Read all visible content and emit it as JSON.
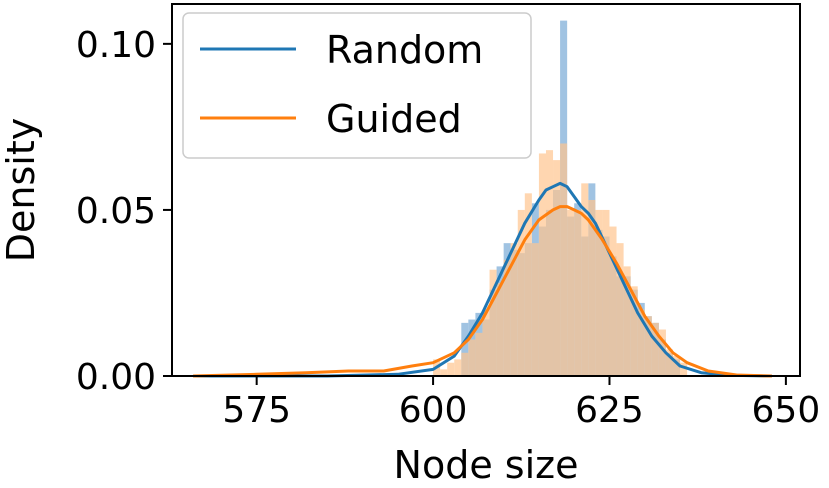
{
  "chart_data": {
    "type": "histogram-kde",
    "xlabel": "Node size",
    "ylabel": "Density",
    "xlim": [
      563,
      652
    ],
    "ylim": [
      0,
      0.112
    ],
    "x_ticks": [
      575,
      600,
      625,
      650
    ],
    "y_ticks": [
      {
        "value": 0.0,
        "label": "0.00"
      },
      {
        "value": 0.05,
        "label": "0.05"
      },
      {
        "value": 0.1,
        "label": "0.10"
      }
    ],
    "grid": false,
    "legend": {
      "position": "top-left",
      "entries": [
        "Random",
        "Guided"
      ]
    },
    "histogram_bin_width": 1,
    "series": [
      {
        "name": "Random",
        "color": "#1f77b4",
        "hist_color": "#8fb9dd",
        "hist": [
          [
            604,
            0.016
          ],
          [
            605,
            0.017
          ],
          [
            606,
            0.019
          ],
          [
            607,
            0.017
          ],
          [
            608,
            0.026
          ],
          [
            609,
            0.033
          ],
          [
            610,
            0.04
          ],
          [
            611,
            0.038
          ],
          [
            612,
            0.037
          ],
          [
            613,
            0.04
          ],
          [
            614,
            0.052
          ],
          [
            615,
            0.045
          ],
          [
            616,
            0.05
          ],
          [
            617,
            0.056
          ],
          [
            618,
            0.107
          ],
          [
            619,
            0.048
          ],
          [
            620,
            0.052
          ],
          [
            621,
            0.042
          ],
          [
            622,
            0.058
          ],
          [
            623,
            0.044
          ],
          [
            624,
            0.042
          ],
          [
            625,
            0.036
          ],
          [
            626,
            0.03
          ],
          [
            627,
            0.03
          ],
          [
            628,
            0.026
          ],
          [
            629,
            0.022
          ],
          [
            630,
            0.018
          ],
          [
            631,
            0.016
          ],
          [
            632,
            0.011
          ],
          [
            633,
            0.007
          ],
          [
            634,
            0.005
          ]
        ],
        "kde": [
          [
            566,
            0.0
          ],
          [
            585,
            0.0
          ],
          [
            595,
            0.0005
          ],
          [
            600,
            0.002
          ],
          [
            603,
            0.006
          ],
          [
            605,
            0.012
          ],
          [
            607,
            0.019
          ],
          [
            609,
            0.028
          ],
          [
            611,
            0.037
          ],
          [
            613,
            0.046
          ],
          [
            615,
            0.053
          ],
          [
            616,
            0.056
          ],
          [
            617,
            0.057
          ],
          [
            618,
            0.058
          ],
          [
            619,
            0.057
          ],
          [
            620,
            0.054
          ],
          [
            621,
            0.051
          ],
          [
            622,
            0.049
          ],
          [
            623,
            0.046
          ],
          [
            625,
            0.037
          ],
          [
            627,
            0.028
          ],
          [
            629,
            0.019
          ],
          [
            631,
            0.012
          ],
          [
            633,
            0.007
          ],
          [
            635,
            0.003
          ],
          [
            638,
            0.001
          ],
          [
            642,
            0.0002
          ],
          [
            648,
            0.0
          ]
        ]
      },
      {
        "name": "Guided",
        "color": "#ff7f0e",
        "hist_color": "#ffc48f",
        "hist": [
          [
            600,
            0.005
          ],
          [
            601,
            0.002
          ],
          [
            602,
            0.004
          ],
          [
            603,
            0.005
          ],
          [
            604,
            0.007
          ],
          [
            605,
            0.011
          ],
          [
            606,
            0.013
          ],
          [
            607,
            0.02
          ],
          [
            608,
            0.032
          ],
          [
            609,
            0.028
          ],
          [
            610,
            0.035
          ],
          [
            611,
            0.04
          ],
          [
            612,
            0.05
          ],
          [
            613,
            0.055
          ],
          [
            614,
            0.04
          ],
          [
            615,
            0.067
          ],
          [
            616,
            0.068
          ],
          [
            617,
            0.065
          ],
          [
            618,
            0.07
          ],
          [
            619,
            0.05
          ],
          [
            620,
            0.05
          ],
          [
            621,
            0.058
          ],
          [
            622,
            0.053
          ],
          [
            623,
            0.05
          ],
          [
            624,
            0.05
          ],
          [
            625,
            0.045
          ],
          [
            626,
            0.04
          ],
          [
            627,
            0.033
          ],
          [
            628,
            0.027
          ],
          [
            629,
            0.02
          ],
          [
            630,
            0.018
          ],
          [
            631,
            0.016
          ],
          [
            632,
            0.014
          ],
          [
            633,
            0.008
          ],
          [
            634,
            0.006
          ],
          [
            635,
            0.004
          ]
        ],
        "kde": [
          [
            566,
            0.0
          ],
          [
            575,
            0.0005
          ],
          [
            582,
            0.001
          ],
          [
            588,
            0.0015
          ],
          [
            593,
            0.0015
          ],
          [
            597,
            0.003
          ],
          [
            600,
            0.004
          ],
          [
            603,
            0.007
          ],
          [
            605,
            0.011
          ],
          [
            607,
            0.017
          ],
          [
            609,
            0.025
          ],
          [
            611,
            0.033
          ],
          [
            613,
            0.041
          ],
          [
            615,
            0.047
          ],
          [
            617,
            0.05
          ],
          [
            618,
            0.051
          ],
          [
            619,
            0.051
          ],
          [
            620,
            0.05
          ],
          [
            621,
            0.049
          ],
          [
            622,
            0.047
          ],
          [
            624,
            0.041
          ],
          [
            626,
            0.034
          ],
          [
            628,
            0.026
          ],
          [
            630,
            0.018
          ],
          [
            632,
            0.012
          ],
          [
            634,
            0.007
          ],
          [
            636,
            0.004
          ],
          [
            639,
            0.0015
          ],
          [
            643,
            0.0003
          ],
          [
            648,
            0.0
          ]
        ]
      }
    ]
  }
}
